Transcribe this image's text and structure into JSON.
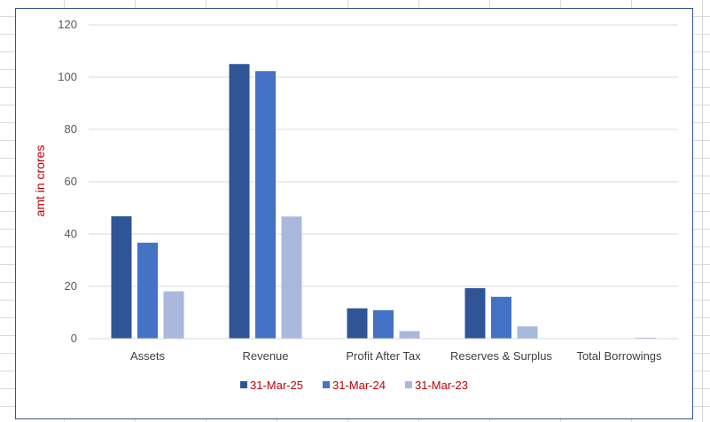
{
  "chart_data": {
    "type": "bar",
    "title": "",
    "xlabel": "",
    "ylabel": "amt in crores",
    "ylabel_color": "#c00000",
    "ylim": [
      0,
      120
    ],
    "yticks": [
      0,
      20,
      40,
      60,
      80,
      100,
      120
    ],
    "grid": true,
    "legend_position": "bottom",
    "legend_text_color": "#c00000",
    "categories": [
      "Assets",
      "Revenue",
      "Profit After Tax",
      "Reserves & Surplus",
      "Total Borrowings"
    ],
    "series": [
      {
        "name": "31-Mar-25",
        "color": "#2f5597",
        "values": [
          46.8,
          105.0,
          11.6,
          19.3,
          0
        ]
      },
      {
        "name": "31-Mar-24",
        "color": "#4472c4",
        "values": [
          36.7,
          102.3,
          10.9,
          16.0,
          0
        ]
      },
      {
        "name": "31-Mar-23",
        "color": "#a9b8dc",
        "values": [
          18.1,
          46.7,
          2.9,
          4.7,
          0.4
        ]
      }
    ]
  }
}
